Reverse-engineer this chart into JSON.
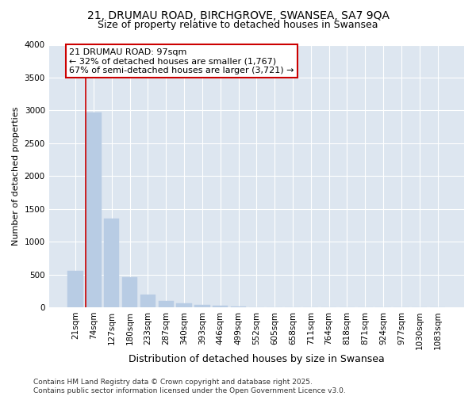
{
  "title_line1": "21, DRUMAU ROAD, BIRCHGROVE, SWANSEA, SA7 9QA",
  "title_line2": "Size of property relative to detached houses in Swansea",
  "xlabel": "Distribution of detached houses by size in Swansea",
  "ylabel": "Number of detached properties",
  "categories": [
    "21sqm",
    "74sqm",
    "127sqm",
    "180sqm",
    "233sqm",
    "287sqm",
    "340sqm",
    "393sqm",
    "446sqm",
    "499sqm",
    "552sqm",
    "605sqm",
    "658sqm",
    "711sqm",
    "764sqm",
    "818sqm",
    "871sqm",
    "924sqm",
    "977sqm",
    "1030sqm",
    "1083sqm"
  ],
  "values": [
    550,
    2970,
    1350,
    460,
    195,
    100,
    55,
    30,
    20,
    15,
    0,
    0,
    0,
    0,
    0,
    0,
    0,
    0,
    0,
    0,
    0
  ],
  "bar_color": "#b8cce4",
  "bar_edgecolor": "#b8cce4",
  "vline_color": "#cc0000",
  "annotation_text": "21 DRUMAU ROAD: 97sqm\n← 32% of detached houses are smaller (1,767)\n67% of semi-detached houses are larger (3,721) →",
  "annotation_box_color": "white",
  "annotation_box_edgecolor": "#cc0000",
  "annotation_fontsize": 8,
  "ylim": [
    0,
    4000
  ],
  "yticks": [
    0,
    500,
    1000,
    1500,
    2000,
    2500,
    3000,
    3500,
    4000
  ],
  "background_color": "#dde6f0",
  "grid_color": "white",
  "title_fontsize": 10,
  "subtitle_fontsize": 9,
  "xlabel_fontsize": 9,
  "ylabel_fontsize": 8,
  "tick_fontsize": 7.5,
  "footer_text": "Contains HM Land Registry data © Crown copyright and database right 2025.\nContains public sector information licensed under the Open Government Licence v3.0.",
  "footer_fontsize": 6.5
}
